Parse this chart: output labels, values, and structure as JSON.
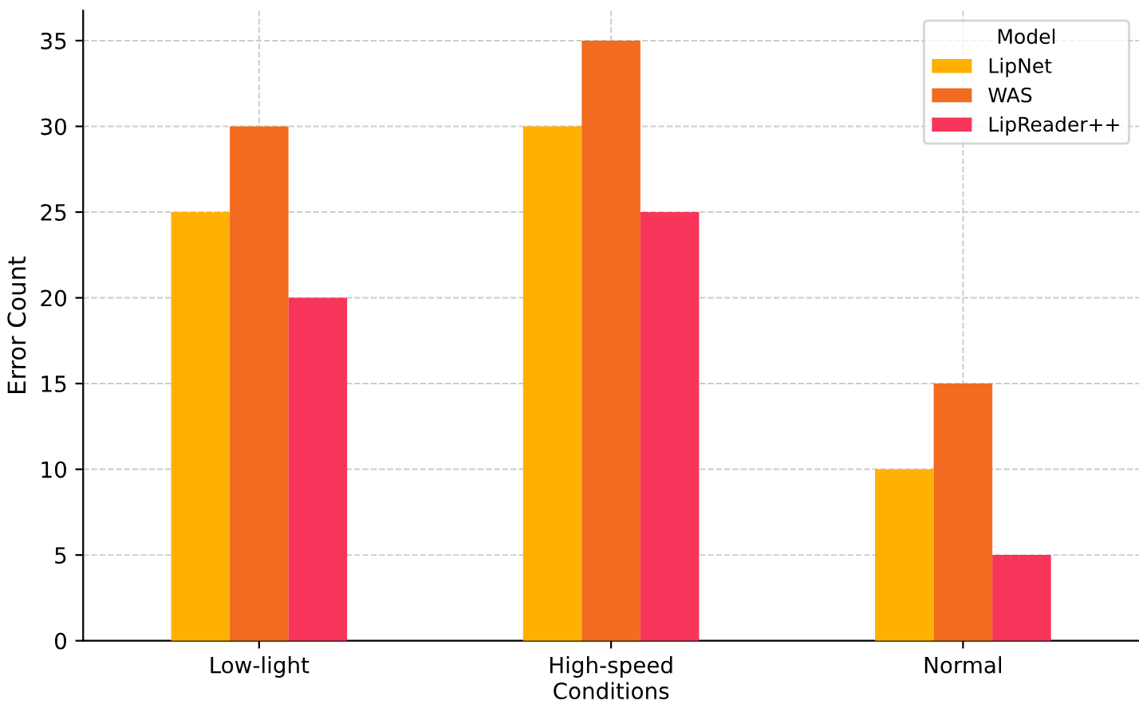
{
  "chart_data": {
    "type": "bar",
    "xlabel": "Conditions",
    "ylabel": "Error Count",
    "legend_title": "Model",
    "categories": [
      "Low-light",
      "High-speed",
      "Normal"
    ],
    "series": [
      {
        "name": "LipNet",
        "color": "#ffb000",
        "values": [
          25,
          30,
          10
        ]
      },
      {
        "name": "WAS",
        "color": "#f26b21",
        "values": [
          30,
          35,
          15
        ]
      },
      {
        "name": "LipReader++",
        "color": "#f73459",
        "values": [
          20,
          25,
          5
        ]
      }
    ],
    "ylim": [
      0,
      36.75
    ],
    "yticks": [
      0,
      5,
      10,
      15,
      20,
      25,
      30,
      35
    ],
    "grid": true,
    "legend": "top right"
  }
}
